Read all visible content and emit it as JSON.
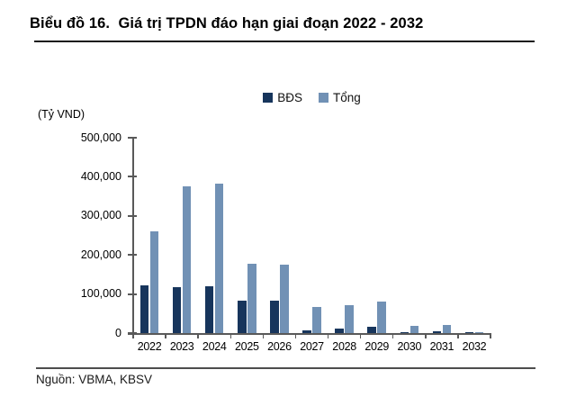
{
  "title": "Biểu đồ 16.  Giá trị TPDN đáo hạn giai đoạn 2022 - 2032",
  "source": "Nguồn: VBMA, KBSV",
  "colors": {
    "series_dark": "#17355c",
    "series_light": "#7191b5",
    "axis": "#595959"
  },
  "chart_data": {
    "type": "bar",
    "title": "Giá trị TPDN đáo hạn giai đoạn 2022 - 2032",
    "unit_label": "(Tỷ VND)",
    "categories": [
      "2022",
      "2023",
      "2024",
      "2025",
      "2026",
      "2027",
      "2028",
      "2029",
      "2030",
      "2031",
      "2032"
    ],
    "series": [
      {
        "name": "BĐS",
        "color": "#17355c",
        "values": [
          122000,
          118000,
          119000,
          82000,
          84000,
          7000,
          11000,
          17000,
          2000,
          5000,
          1000
        ]
      },
      {
        "name": "Tổng",
        "color": "#7191b5",
        "values": [
          261000,
          375000,
          382000,
          178000,
          176000,
          66000,
          71000,
          81000,
          18000,
          21000,
          3000
        ]
      }
    ],
    "ylim": [
      0,
      500000
    ],
    "ytick_step": 100000,
    "ytick_labels": [
      "500,000",
      "400,000",
      "300,000",
      "200,000",
      "100,000",
      "0"
    ],
    "grid": false,
    "legend_position": "top-center",
    "xlabel": "",
    "ylabel": "(Tỷ VND)"
  }
}
